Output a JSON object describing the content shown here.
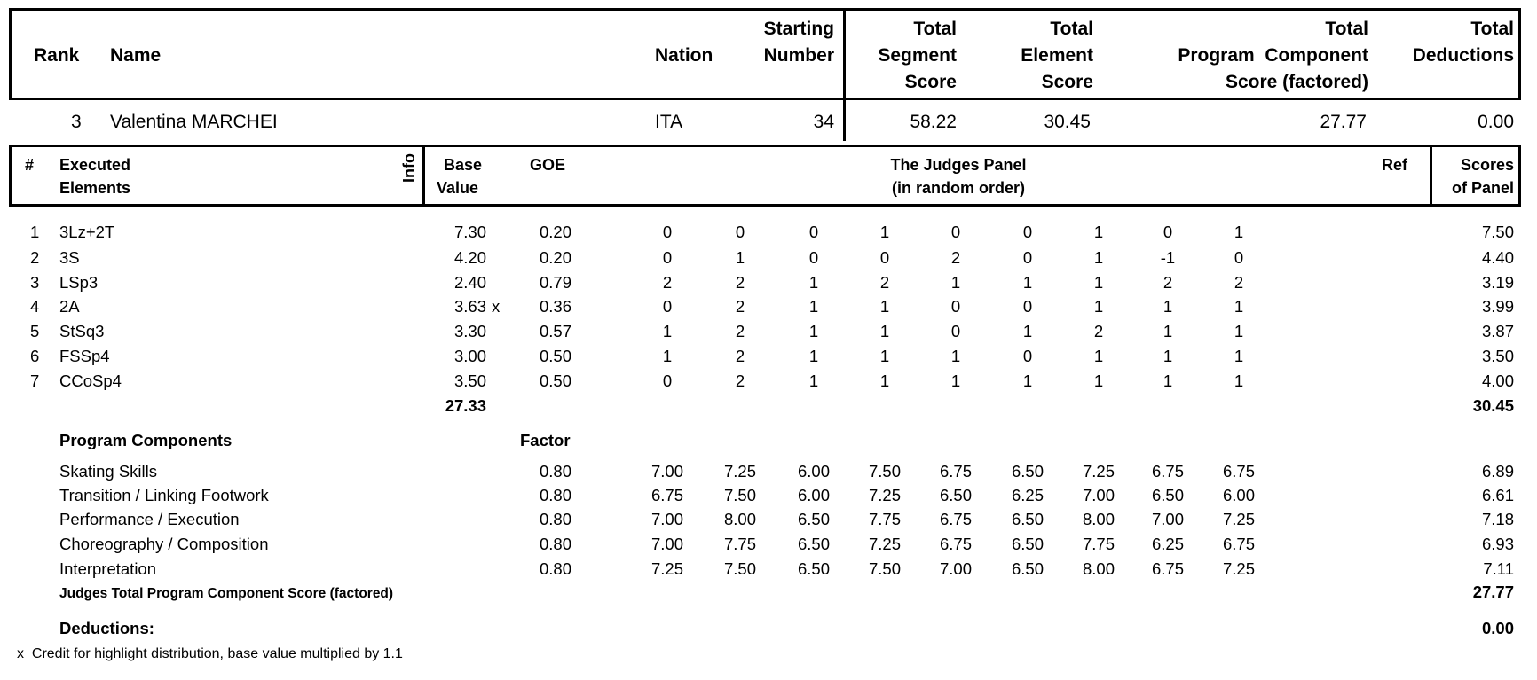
{
  "header": {
    "rank_label": "Rank",
    "name_label": "Name",
    "nation_label": "Nation",
    "starting_number_label": [
      "Starting",
      "Number"
    ],
    "tss_label": [
      "Total",
      "Segment",
      "Score"
    ],
    "tes_label": [
      "Total",
      "Element",
      "Score"
    ],
    "pcs_label": [
      "Total",
      "Program  Component",
      "Score (factored)"
    ],
    "ded_label": [
      "Total",
      "Deductions"
    ]
  },
  "skater": {
    "rank": "3",
    "name": "Valentina MARCHEI",
    "nation": "ITA",
    "starting_number": "34",
    "tss": "58.22",
    "tes": "30.45",
    "pcs": "27.77",
    "deductions": "0.00"
  },
  "elements_header": {
    "num": "#",
    "executed": [
      "Executed",
      "Elements"
    ],
    "info": "Info",
    "base_value": [
      "Base",
      "Value"
    ],
    "goe": "GOE",
    "judges_panel": [
      "The Judges Panel",
      "(in random order)"
    ],
    "ref": "Ref",
    "scores": [
      "Scores",
      "of Panel"
    ]
  },
  "elements": [
    {
      "num": "1",
      "name": "3Lz+2T",
      "info": "",
      "base": "7.30",
      "goe": "0.20",
      "judges": [
        "0",
        "0",
        "0",
        "1",
        "0",
        "0",
        "1",
        "0",
        "1"
      ],
      "score": "7.50"
    },
    {
      "num": "2",
      "name": "3S",
      "info": "",
      "base": "4.20",
      "goe": "0.20",
      "judges": [
        "0",
        "1",
        "0",
        "0",
        "2",
        "0",
        "1",
        "-1",
        "0"
      ],
      "score": "4.40"
    },
    {
      "num": "3",
      "name": "LSp3",
      "info": "",
      "base": "2.40",
      "goe": "0.79",
      "judges": [
        "2",
        "2",
        "1",
        "2",
        "1",
        "1",
        "1",
        "2",
        "2"
      ],
      "score": "3.19"
    },
    {
      "num": "4",
      "name": "2A",
      "info": "x",
      "base": "3.63",
      "goe": "0.36",
      "judges": [
        "0",
        "2",
        "1",
        "1",
        "0",
        "0",
        "1",
        "1",
        "1"
      ],
      "score": "3.99"
    },
    {
      "num": "5",
      "name": "StSq3",
      "info": "",
      "base": "3.30",
      "goe": "0.57",
      "judges": [
        "1",
        "2",
        "1",
        "1",
        "0",
        "1",
        "2",
        "1",
        "1"
      ],
      "score": "3.87"
    },
    {
      "num": "6",
      "name": "FSSp4",
      "info": "",
      "base": "3.00",
      "goe": "0.50",
      "judges": [
        "1",
        "2",
        "1",
        "1",
        "1",
        "0",
        "1",
        "1",
        "1"
      ],
      "score": "3.50"
    },
    {
      "num": "7",
      "name": "CCoSp4",
      "info": "",
      "base": "3.50",
      "goe": "0.50",
      "judges": [
        "0",
        "2",
        "1",
        "1",
        "1",
        "1",
        "1",
        "1",
        "1"
      ],
      "score": "4.00"
    }
  ],
  "elements_total": {
    "base": "27.33",
    "score": "30.45"
  },
  "components_header": {
    "label": "Program Components",
    "factor": "Factor"
  },
  "components": [
    {
      "name": "Skating Skills",
      "factor": "0.80",
      "judges": [
        "7.00",
        "7.25",
        "6.00",
        "7.50",
        "6.75",
        "6.50",
        "7.25",
        "6.75",
        "6.75"
      ],
      "score": "6.89"
    },
    {
      "name": "Transition / Linking Footwork",
      "factor": "0.80",
      "judges": [
        "6.75",
        "7.50",
        "6.00",
        "7.25",
        "6.50",
        "6.25",
        "7.00",
        "6.50",
        "6.00"
      ],
      "score": "6.61"
    },
    {
      "name": "Performance / Execution",
      "factor": "0.80",
      "judges": [
        "7.00",
        "8.00",
        "6.50",
        "7.75",
        "6.75",
        "6.50",
        "8.00",
        "7.00",
        "7.25"
      ],
      "score": "7.18"
    },
    {
      "name": "Choreography / Composition",
      "factor": "0.80",
      "judges": [
        "7.00",
        "7.75",
        "6.50",
        "7.25",
        "6.75",
        "6.50",
        "7.75",
        "6.25",
        "6.75"
      ],
      "score": "6.93"
    },
    {
      "name": "Interpretation",
      "factor": "0.80",
      "judges": [
        "7.25",
        "7.50",
        "6.50",
        "7.50",
        "7.00",
        "6.50",
        "8.00",
        "6.75",
        "7.25"
      ],
      "score": "7.11"
    }
  ],
  "pcs_total": {
    "label": "Judges Total Program Component Score (factored)",
    "value": "27.77"
  },
  "deductions": {
    "label": "Deductions:",
    "value": "0.00"
  },
  "footnote": {
    "mark": "x",
    "text": "Credit for highlight distribution, base value multiplied by 1.1"
  }
}
